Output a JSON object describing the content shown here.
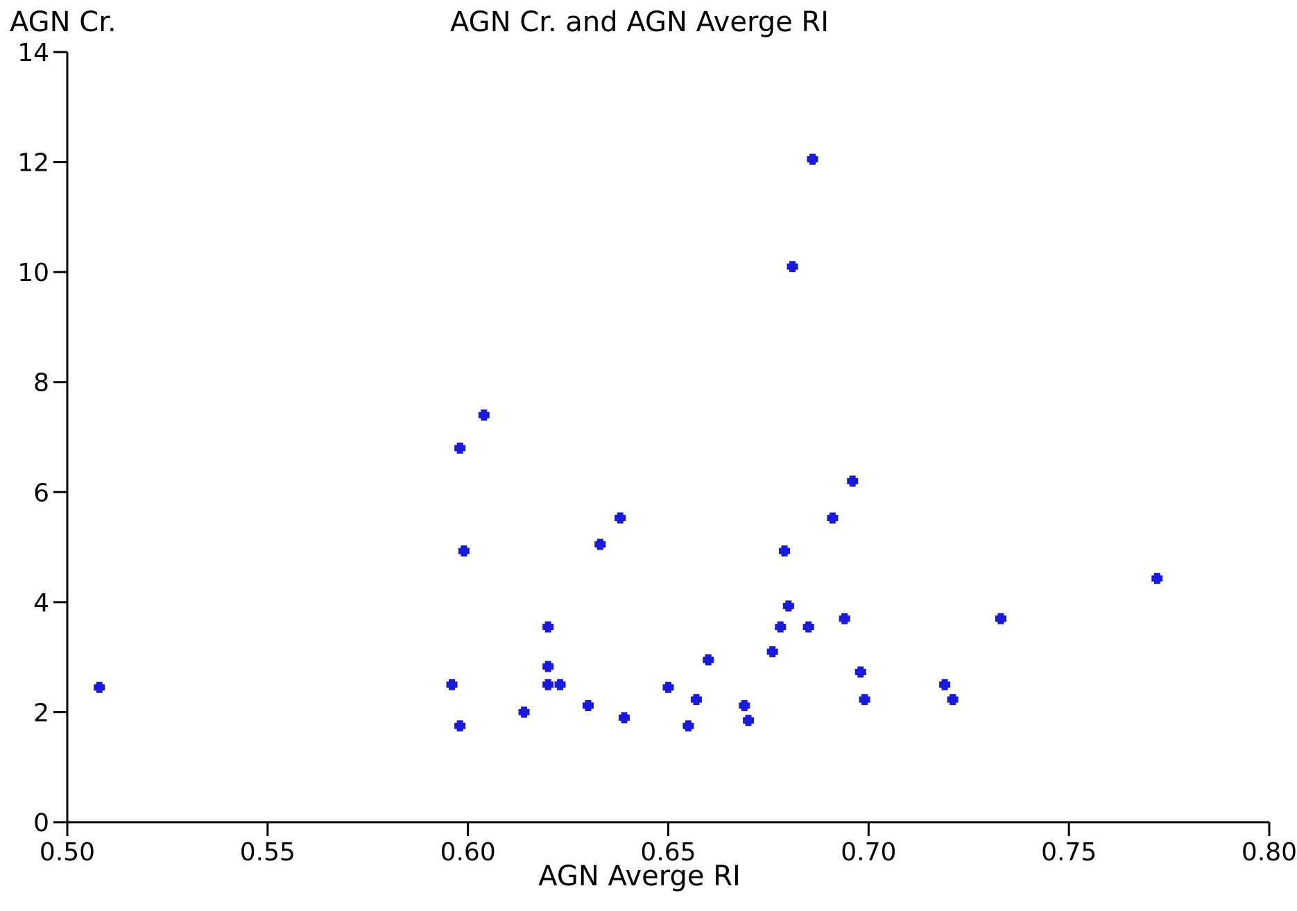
{
  "chart_data": {
    "type": "scatter",
    "title": "AGN Cr. and AGN Averge RI",
    "xlabel": "AGN Averge RI",
    "ylabel": "AGN Cr.",
    "xlim": [
      0.5,
      0.8
    ],
    "ylim": [
      0,
      14
    ],
    "x_ticks": [
      "0.50",
      "0.55",
      "0.60",
      "0.65",
      "0.70",
      "0.75",
      "0.80"
    ],
    "y_ticks": [
      "0",
      "2",
      "4",
      "6",
      "8",
      "10",
      "12",
      "14"
    ],
    "grid": false,
    "marker_color": "#1a1adc",
    "series": [
      {
        "points": [
          {
            "x": 0.508,
            "y": 2.45
          },
          {
            "x": 0.596,
            "y": 2.5
          },
          {
            "x": 0.598,
            "y": 1.75
          },
          {
            "x": 0.598,
            "y": 6.8
          },
          {
            "x": 0.599,
            "y": 4.93
          },
          {
            "x": 0.604,
            "y": 7.4
          },
          {
            "x": 0.614,
            "y": 2.0
          },
          {
            "x": 0.62,
            "y": 3.55
          },
          {
            "x": 0.62,
            "y": 2.83
          },
          {
            "x": 0.62,
            "y": 2.5
          },
          {
            "x": 0.623,
            "y": 2.5
          },
          {
            "x": 0.63,
            "y": 2.12
          },
          {
            "x": 0.633,
            "y": 5.05
          },
          {
            "x": 0.638,
            "y": 5.53
          },
          {
            "x": 0.639,
            "y": 1.9
          },
          {
            "x": 0.65,
            "y": 2.45
          },
          {
            "x": 0.655,
            "y": 1.75
          },
          {
            "x": 0.657,
            "y": 2.23
          },
          {
            "x": 0.66,
            "y": 2.95
          },
          {
            "x": 0.669,
            "y": 2.12
          },
          {
            "x": 0.67,
            "y": 1.85
          },
          {
            "x": 0.676,
            "y": 3.1
          },
          {
            "x": 0.678,
            "y": 3.55
          },
          {
            "x": 0.679,
            "y": 4.93
          },
          {
            "x": 0.68,
            "y": 3.93
          },
          {
            "x": 0.681,
            "y": 10.1
          },
          {
            "x": 0.685,
            "y": 3.55
          },
          {
            "x": 0.686,
            "y": 12.05
          },
          {
            "x": 0.691,
            "y": 5.53
          },
          {
            "x": 0.694,
            "y": 3.7
          },
          {
            "x": 0.696,
            "y": 6.2
          },
          {
            "x": 0.698,
            "y": 2.73
          },
          {
            "x": 0.699,
            "y": 2.23
          },
          {
            "x": 0.719,
            "y": 2.5
          },
          {
            "x": 0.721,
            "y": 2.23
          },
          {
            "x": 0.733,
            "y": 3.7
          },
          {
            "x": 0.772,
            "y": 4.43
          }
        ]
      }
    ]
  }
}
